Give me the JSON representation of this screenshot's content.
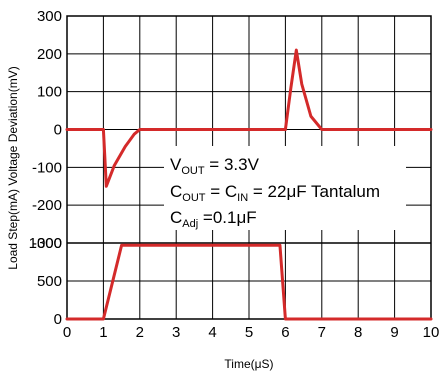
{
  "chart_data": {
    "type": "line",
    "xlabel": "Time(μS)",
    "ylabel": "Load Step(mA) Voltage Deviation(mV)",
    "xlim": [
      0,
      10
    ],
    "x_ticks": [
      "0",
      "1",
      "2",
      "3",
      "4",
      "5",
      "6",
      "7",
      "8",
      "9",
      "10"
    ],
    "grid": true,
    "panels": [
      {
        "name": "voltage-deviation",
        "unit": "mV",
        "ylim": [
          -300,
          300
        ],
        "y_ticks": [
          "300",
          "200",
          "100",
          "0",
          "-100",
          "-200",
          "-300"
        ],
        "line_color": "#d42a2a",
        "x": [
          0,
          1.0,
          1.08,
          1.3,
          1.6,
          1.85,
          2.0,
          6.0,
          6.15,
          6.3,
          6.45,
          6.7,
          7.0,
          10
        ],
        "y": [
          0,
          0,
          -150,
          -95,
          -45,
          -12,
          0,
          0,
          110,
          210,
          120,
          35,
          0,
          0
        ]
      },
      {
        "name": "load-step",
        "unit": "mA",
        "ylim": [
          0,
          1000
        ],
        "y_ticks": [
          "1000",
          "500",
          "0"
        ],
        "line_color": "#d42a2a",
        "x": [
          0,
          1.0,
          1.5,
          5.85,
          6.0,
          10
        ],
        "y": [
          0,
          0,
          970,
          970,
          0,
          0
        ]
      }
    ],
    "annotations": [
      {
        "parts": [
          [
            "V",
            ""
          ],
          [
            "OUT",
            "sub"
          ],
          [
            " = 3.3V",
            ""
          ]
        ]
      },
      {
        "parts": [
          [
            "C",
            ""
          ],
          [
            "OUT",
            "sub"
          ],
          [
            " = C",
            ""
          ],
          [
            "IN",
            "sub"
          ],
          [
            " = 22μF Tantalum",
            ""
          ]
        ]
      },
      {
        "parts": [
          [
            "C",
            ""
          ],
          [
            "Adj",
            "sub"
          ],
          [
            " =0.1μF",
            ""
          ]
        ]
      }
    ]
  }
}
